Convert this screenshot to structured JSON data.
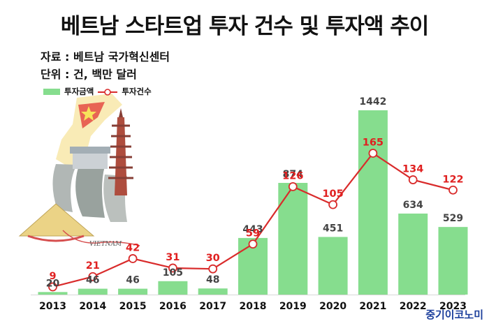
{
  "title": "베트남 스타트업 투자 건수 및 투자액 추이",
  "source_line": "자료 : 베트남 국가혁신센터",
  "unit_line": "단위 : 건, 백만 달러",
  "brand": "중기이코노미",
  "illustration": {
    "label": "VIETNAM"
  },
  "colors": {
    "bar": "#86dd8e",
    "line": "#d92b2b",
    "bar_label": "#444444",
    "line_label": "#e02020"
  },
  "chart_data": {
    "type": "bar",
    "categories": [
      "2013",
      "2014",
      "2015",
      "2016",
      "2017",
      "2018",
      "2019",
      "2020",
      "2021",
      "2022",
      "2023"
    ],
    "series": [
      {
        "name": "투자금액",
        "type": "bar",
        "values": [
          20,
          46,
          46,
          105,
          48,
          443,
          874,
          451,
          1442,
          634,
          529
        ]
      },
      {
        "name": "투자건수",
        "type": "line",
        "values": [
          9,
          21,
          42,
          31,
          30,
          59,
          126,
          105,
          165,
          134,
          122
        ]
      }
    ],
    "ylim_bar": [
      0,
      1560
    ],
    "ylim_line": [
      0,
      220
    ],
    "grid": false,
    "legend": "top-left"
  }
}
